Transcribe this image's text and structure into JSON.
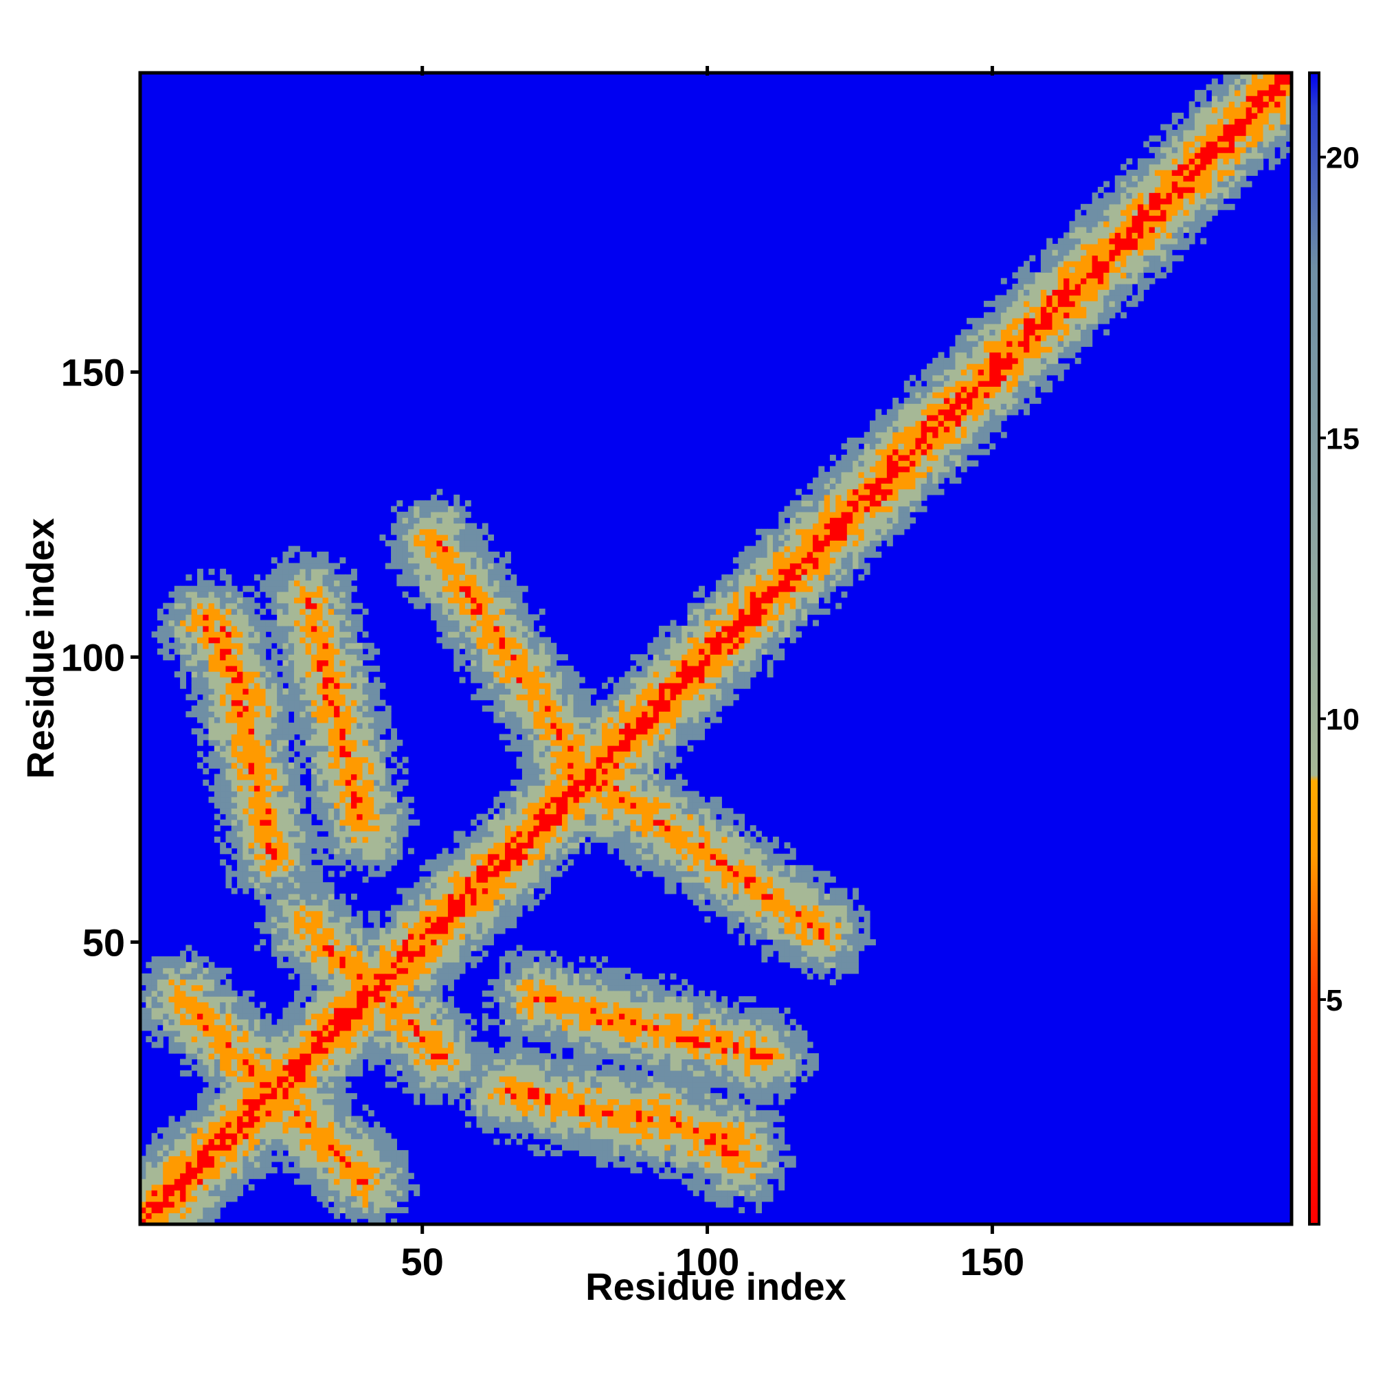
{
  "chart_data": {
    "type": "heatmap",
    "title": "",
    "xlabel": "Residue index",
    "ylabel": "Residue index",
    "xlim": [
      1,
      202
    ],
    "ylim": [
      1,
      202
    ],
    "x_ticks": [
      50,
      100,
      150
    ],
    "y_ticks": [
      50,
      100,
      150
    ],
    "colorbar": {
      "range": [
        1,
        21.5
      ],
      "ticks": [
        5,
        10,
        15,
        20
      ],
      "colors": {
        "close": "#ff0000",
        "mid": "#ff9a00",
        "sage": "#a6b896",
        "steel": "#6f8fa5",
        "far": "#0000f2"
      }
    },
    "pattern": {
      "symmetric": true,
      "main_diagonal": true,
      "antiparallel_contacts": [
        {
          "i_from": 8,
          "i_to": 40,
          "j_from": 40,
          "j_to": 8
        },
        {
          "i_from": 30,
          "i_to": 53,
          "j_from": 53,
          "j_to": 30
        },
        {
          "i_from": 12,
          "i_to": 20,
          "j_from": 106,
          "j_to": 92
        }
      ],
      "parallel_contacts": [
        {
          "i_from": 65,
          "i_to": 105,
          "j_from": 24,
          "j_to": 15
        },
        {
          "i_from": 75,
          "i_to": 120,
          "j_from": 82,
          "j_to": 52
        },
        {
          "i_from": 70,
          "i_to": 110,
          "j_from": 40,
          "j_to": 30
        }
      ]
    }
  }
}
